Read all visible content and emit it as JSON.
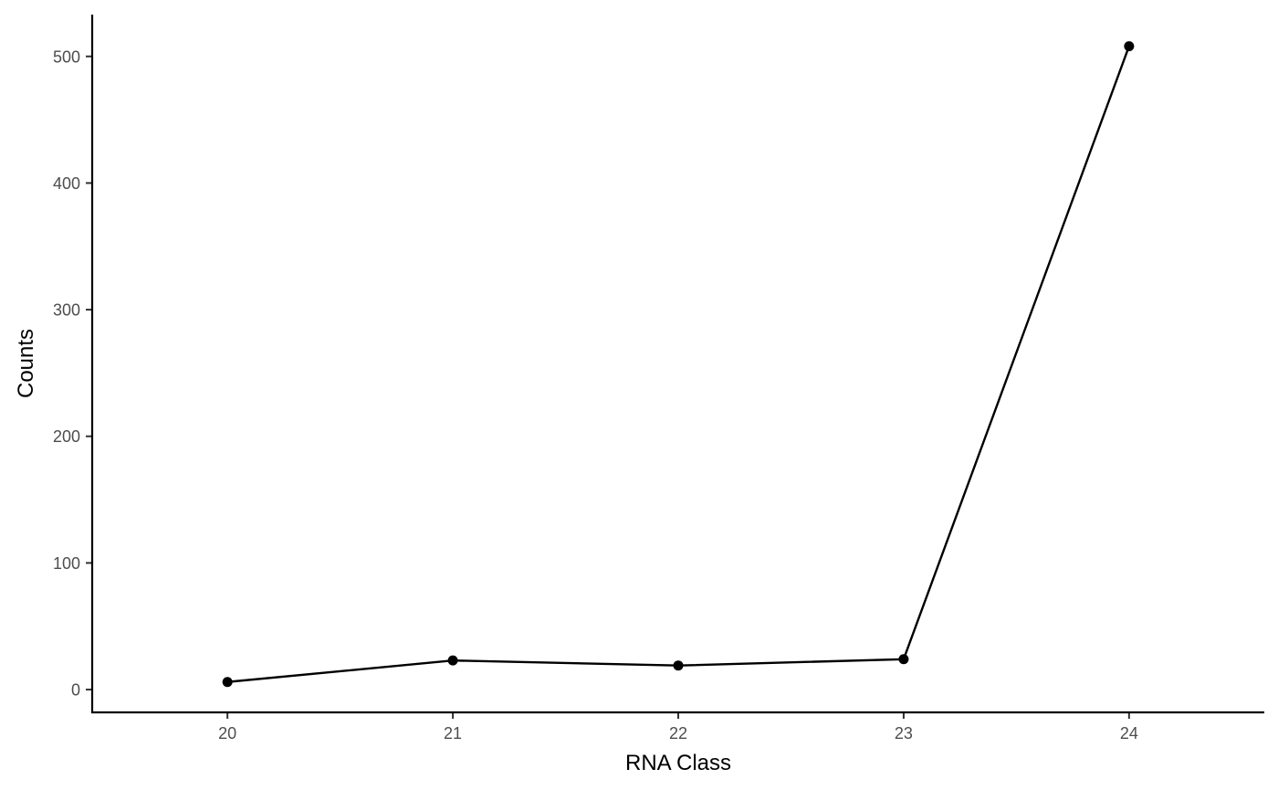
{
  "chart_data": {
    "type": "line",
    "xlabel": "RNA Class",
    "ylabel": "Counts",
    "x": [
      20,
      21,
      22,
      23,
      24
    ],
    "series": [
      {
        "values": [
          6,
          23,
          19,
          24,
          508
        ]
      }
    ],
    "xlim": [
      19.4,
      24.6
    ],
    "ylim": [
      -18,
      533
    ],
    "xticks": [
      "20",
      "21",
      "22",
      "23",
      "24"
    ],
    "yticks": [
      "0",
      "100",
      "200",
      "300",
      "400",
      "500"
    ],
    "grid": false,
    "line_color": "#000000",
    "point_color": "#000000"
  }
}
